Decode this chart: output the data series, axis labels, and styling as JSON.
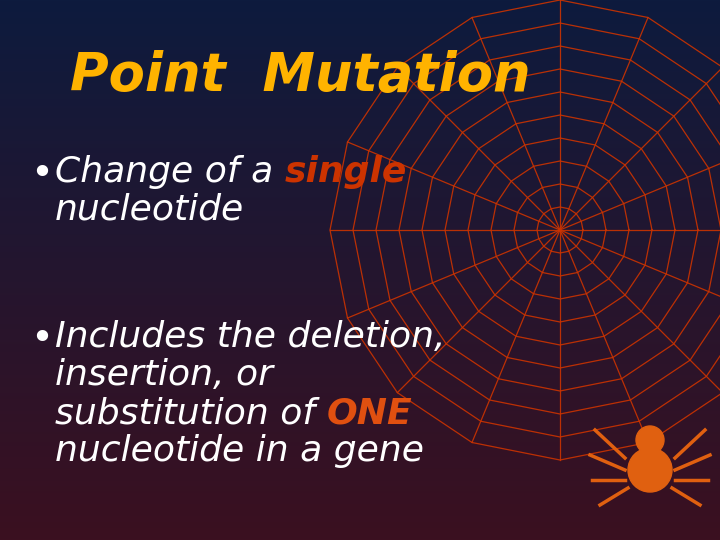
{
  "title": "Point  Mutation",
  "title_color": "#FFB300",
  "title_fontsize": 38,
  "bg_color_top": "#0D1B3E",
  "bg_color_bottom": "#3B1020",
  "bullet1_parts": [
    {
      "text": "Change of a ",
      "color": "#FFFFFF"
    },
    {
      "text": "single",
      "color": "#E05010"
    },
    {
      "text": "\nnucleotide",
      "color": "#FFFFFF"
    }
  ],
  "bullet2_parts": [
    {
      "text": "Includes the deletion,\ninsertion, or\nsubstitution of ",
      "color": "#FFFFFF"
    },
    {
      "text": "ONE",
      "color": "#E05010"
    },
    {
      "text": "\nnucleotide in a gene",
      "color": "#FFFFFF"
    }
  ],
  "bullet_fontsize": 26,
  "web_color": "#CC3300",
  "spider_color": "#E06010",
  "figsize": [
    7.2,
    5.4
  ],
  "dpi": 100
}
